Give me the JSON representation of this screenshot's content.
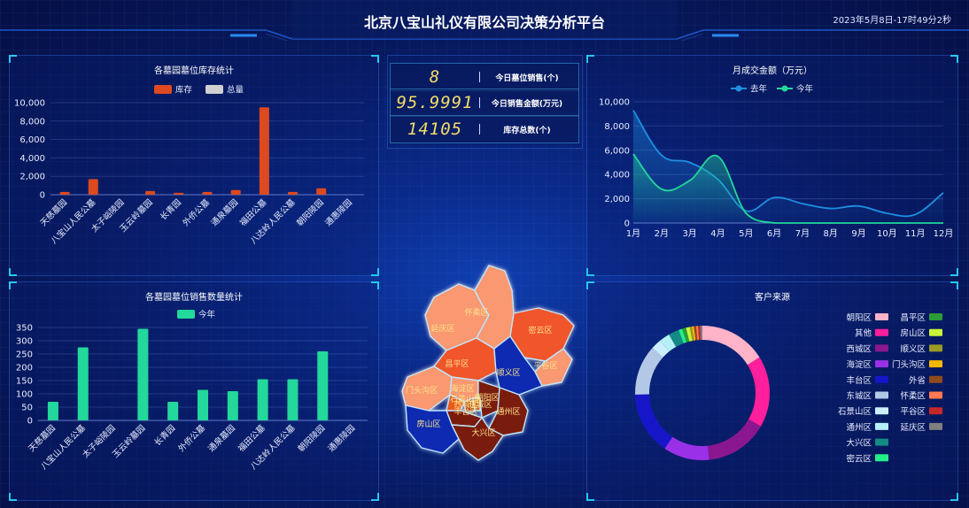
{
  "header": {
    "title": "北京八宝山礼仪有限公司决策分析平台",
    "datetime": "2023年5月8日-17时49分2秒"
  },
  "kpis": [
    {
      "value": "8",
      "label": "今日墓位销售(个)"
    },
    {
      "value": "95.9991",
      "label": "今日销售金额(万元)"
    },
    {
      "value": "14105",
      "label": "库存总数(个)"
    }
  ],
  "map": {
    "districts": [
      "怀柔区",
      "延庆区",
      "密云区",
      "昌平区",
      "顺义区",
      "平谷区",
      "门头沟区",
      "海淀区",
      "石景山区",
      "朝阳区",
      "西城区",
      "东城区",
      "丰台区",
      "通州区",
      "房山区",
      "大兴区"
    ]
  },
  "chart_data": [
    {
      "id": "inventory",
      "type": "bar",
      "title": "各墓园墓位库存统计",
      "categories": [
        "天慈墓园",
        "八宝山人民公墓",
        "太子峪陵园",
        "玉云岭墓园",
        "长青园",
        "外侨公墓",
        "通泉墓园",
        "福田公墓",
        "八达岭人民公墓",
        "朝阳陵园",
        "通惠陵园"
      ],
      "series": [
        {
          "name": "库存",
          "color": "#dd4a1f",
          "values": [
            300,
            1700,
            0,
            400,
            200,
            300,
            500,
            9500,
            300,
            700,
            0
          ]
        },
        {
          "name": "总量",
          "color": "#d0d0d0",
          "values": [
            0,
            0,
            0,
            0,
            0,
            0,
            0,
            0,
            0,
            0,
            0
          ]
        }
      ],
      "ylim": [
        0,
        10000
      ],
      "yticks": [
        "0",
        "2,000",
        "4,000",
        "6,000",
        "8,000",
        "10,000"
      ]
    },
    {
      "id": "monthly",
      "type": "line",
      "title": "月成交金额（万元）",
      "categories": [
        "1月",
        "2月",
        "3月",
        "4月",
        "5月",
        "6月",
        "7月",
        "8月",
        "9月",
        "10月",
        "11月",
        "12月"
      ],
      "series": [
        {
          "name": "去年",
          "color": "#1e8fe0",
          "values": [
            9300,
            5600,
            5000,
            3600,
            1000,
            2100,
            1600,
            1200,
            1400,
            800,
            700,
            2500
          ]
        },
        {
          "name": "今年",
          "color": "#22d89a",
          "values": [
            5700,
            2800,
            3500,
            5500,
            800,
            0,
            0,
            0,
            0,
            0,
            0,
            0
          ]
        }
      ],
      "ylim": [
        0,
        10000
      ],
      "yticks": [
        "0",
        "2,000",
        "4,000",
        "6,000",
        "8,000",
        "10,000"
      ]
    },
    {
      "id": "sales",
      "type": "bar",
      "title": "各墓园墓位销售数量统计",
      "categories": [
        "天慈墓园",
        "八宝山人民公墓",
        "太子峪陵园",
        "玉云岭墓园",
        "长青园",
        "外侨公墓",
        "通泉墓园",
        "福田公墓",
        "八达岭人民公墓",
        "朝阳陵园",
        "通惠陵园"
      ],
      "series": [
        {
          "name": "今年",
          "color": "#22d89a",
          "values": [
            70,
            275,
            0,
            345,
            70,
            115,
            110,
            155,
            155,
            260,
            0
          ]
        }
      ],
      "ylim": [
        0,
        350
      ],
      "yticks": [
        "0",
        "50",
        "100",
        "150",
        "200",
        "250",
        "300",
        "350"
      ]
    },
    {
      "id": "customers",
      "type": "pie",
      "title": "客户来源",
      "slices": [
        {
          "name": "朝阳区",
          "color": "#ffb3c8",
          "value": 16
        },
        {
          "name": "其他",
          "color": "#ff1f9c",
          "value": 17
        },
        {
          "name": "西城区",
          "color": "#8a178f",
          "value": 15
        },
        {
          "name": "海淀区",
          "color": "#9a30e8",
          "value": 11
        },
        {
          "name": "丰台区",
          "color": "#1616c8",
          "value": 15
        },
        {
          "name": "东城区",
          "color": "#b2c8e6",
          "value": 12
        },
        {
          "name": "石景山区",
          "color": "#cbeeff",
          "value": 2.5
        },
        {
          "name": "通州区",
          "color": "#b4f0f5",
          "value": 2.5
        },
        {
          "name": "大兴区",
          "color": "#138a84",
          "value": 2.5
        },
        {
          "name": "密云区",
          "color": "#23f08a",
          "value": 0.9
        },
        {
          "name": "昌平区",
          "color": "#2b9b35",
          "value": 0.9
        },
        {
          "name": "房山区",
          "color": "#c8f53a",
          "value": 0.9
        },
        {
          "name": "顺义区",
          "color": "#9a9a25",
          "value": 0.5
        },
        {
          "name": "门头沟区",
          "color": "#f5b800",
          "value": 0.5
        },
        {
          "name": "外省",
          "color": "#8f4a1d",
          "value": 0.5
        },
        {
          "name": "怀柔区",
          "color": "#ff7a50",
          "value": 0.5
        },
        {
          "name": "平谷区",
          "color": "#c62828",
          "value": 0.5
        },
        {
          "name": "延庆区",
          "color": "#808080",
          "value": 0.5
        }
      ]
    }
  ]
}
